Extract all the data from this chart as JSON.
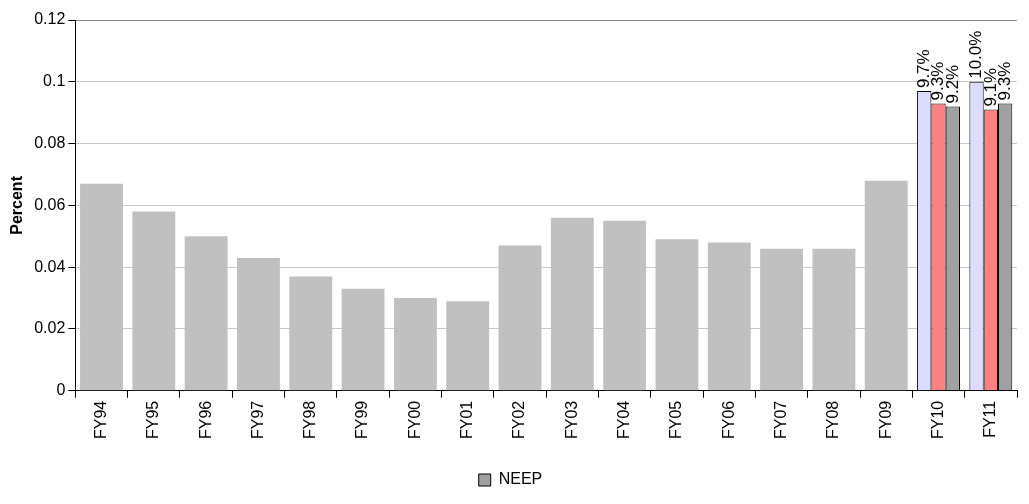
{
  "chart_data": {
    "type": "bar",
    "ylabel": "Percent",
    "categories": [
      "FY94",
      "FY95",
      "FY96",
      "FY97",
      "FY98",
      "FY99",
      "FY00",
      "FY01",
      "FY02",
      "FY03",
      "FY04",
      "FY05",
      "FY06",
      "FY07",
      "FY08",
      "FY09",
      "FY10",
      "FY11"
    ],
    "series": [
      {
        "color": "#c0c0c0",
        "values": [
          0.067,
          0.058,
          0.05,
          0.043,
          0.037,
          0.033,
          0.03,
          0.029,
          0.047,
          0.056,
          0.055,
          0.049,
          0.048,
          0.046,
          0.046,
          0.068,
          null,
          null
        ]
      },
      {
        "color": "#dcdcff",
        "values": [
          null,
          null,
          null,
          null,
          null,
          null,
          null,
          null,
          null,
          null,
          null,
          null,
          null,
          null,
          null,
          null,
          0.097,
          0.1
        ],
        "value_labels": [
          null,
          null,
          null,
          null,
          null,
          null,
          null,
          null,
          null,
          null,
          null,
          null,
          null,
          null,
          null,
          null,
          "9.7%",
          "10.0%"
        ]
      },
      {
        "color": "#ff8080",
        "values": [
          null,
          null,
          null,
          null,
          null,
          null,
          null,
          null,
          null,
          null,
          null,
          null,
          null,
          null,
          null,
          null,
          0.093,
          0.091
        ],
        "value_labels": [
          null,
          null,
          null,
          null,
          null,
          null,
          null,
          null,
          null,
          null,
          null,
          null,
          null,
          null,
          null,
          null,
          "9.3%",
          "9.1%"
        ]
      },
      {
        "name": "NEEP",
        "color": "#a0a0a0",
        "values": [
          null,
          null,
          null,
          null,
          null,
          null,
          null,
          null,
          null,
          null,
          null,
          null,
          null,
          null,
          null,
          null,
          0.092,
          0.093
        ],
        "value_labels": [
          null,
          null,
          null,
          null,
          null,
          null,
          null,
          null,
          null,
          null,
          null,
          null,
          null,
          null,
          null,
          null,
          "9.2%",
          "9.3%"
        ]
      }
    ],
    "ylim": [
      0,
      0.12
    ],
    "yticks": [
      0,
      0.02,
      0.04,
      0.06,
      0.08,
      0.1,
      0.12
    ],
    "grid": "y",
    "legend": "bottom"
  }
}
